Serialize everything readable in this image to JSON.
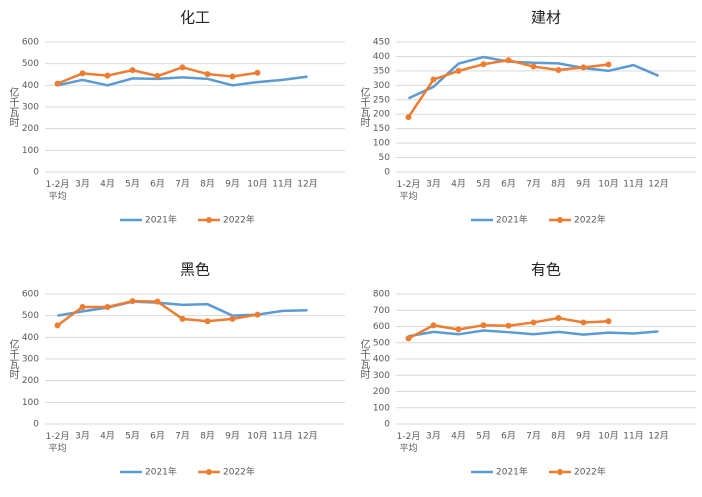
{
  "chart_data": [
    {
      "type": "line",
      "title": "化工",
      "y_label": "亿千瓦时",
      "categories": [
        "1-2月\n平均",
        "3月",
        "4月",
        "5月",
        "6月",
        "7月",
        "8月",
        "9月",
        "10月",
        "11月",
        "12月"
      ],
      "ylim": [
        0,
        600
      ],
      "yticks": [
        0,
        100,
        200,
        300,
        400,
        500,
        600
      ],
      "grid": true,
      "series": [
        {
          "name": "2021年",
          "color": "#5b9bd5",
          "values": [
            400,
            425,
            400,
            432,
            430,
            437,
            430,
            400,
            415,
            425,
            440
          ]
        },
        {
          "name": "2022年",
          "color": "#ed7d31",
          "values": [
            408,
            455,
            445,
            470,
            443,
            483,
            452,
            441,
            458,
            null,
            null
          ]
        }
      ]
    },
    {
      "type": "line",
      "title": "建材",
      "y_label": "亿千瓦时",
      "categories": [
        "1-2月\n平均",
        "3月",
        "4月",
        "5月",
        "6月",
        "7月",
        "8月",
        "9月",
        "10月",
        "11月",
        "12月"
      ],
      "ylim": [
        0,
        450
      ],
      "yticks": [
        0,
        50,
        100,
        150,
        200,
        250,
        300,
        350,
        400,
        450
      ],
      "grid": true,
      "series": [
        {
          "name": "2021年",
          "color": "#5b9bd5",
          "values": [
            255,
            295,
            375,
            398,
            382,
            378,
            376,
            360,
            350,
            370,
            333
          ]
        },
        {
          "name": "2022年",
          "color": "#ed7d31",
          "values": [
            190,
            320,
            350,
            373,
            387,
            365,
            353,
            362,
            372,
            null,
            null
          ]
        }
      ]
    },
    {
      "type": "line",
      "title": "黑色",
      "y_label": "亿千瓦时",
      "categories": [
        "1-2月\n平均",
        "3月",
        "4月",
        "5月",
        "6月",
        "7月",
        "8月",
        "9月",
        "10月",
        "11月",
        "12月"
      ],
      "ylim": [
        0,
        600
      ],
      "yticks": [
        0,
        100,
        200,
        300,
        400,
        500,
        600
      ],
      "grid": true,
      "series": [
        {
          "name": "2021年",
          "color": "#5b9bd5",
          "values": [
            500,
            520,
            537,
            565,
            560,
            550,
            553,
            500,
            505,
            522,
            525
          ]
        },
        {
          "name": "2022年",
          "color": "#ed7d31",
          "values": [
            455,
            540,
            540,
            567,
            565,
            485,
            474,
            485,
            505,
            null,
            null
          ]
        }
      ]
    },
    {
      "type": "line",
      "title": "有色",
      "y_label": "亿千瓦时",
      "categories": [
        "1-2月\n平均",
        "3月",
        "4月",
        "5月",
        "6月",
        "7月",
        "8月",
        "9月",
        "10月",
        "11月",
        "12月"
      ],
      "ylim": [
        0,
        800
      ],
      "yticks": [
        0,
        100,
        200,
        300,
        400,
        500,
        600,
        700,
        800
      ],
      "grid": true,
      "series": [
        {
          "name": "2021年",
          "color": "#5b9bd5",
          "values": [
            540,
            567,
            552,
            575,
            565,
            552,
            567,
            550,
            562,
            557,
            570
          ]
        },
        {
          "name": "2022年",
          "color": "#ed7d31",
          "values": [
            527,
            607,
            582,
            608,
            605,
            625,
            652,
            625,
            632,
            null,
            null
          ]
        }
      ]
    }
  ]
}
